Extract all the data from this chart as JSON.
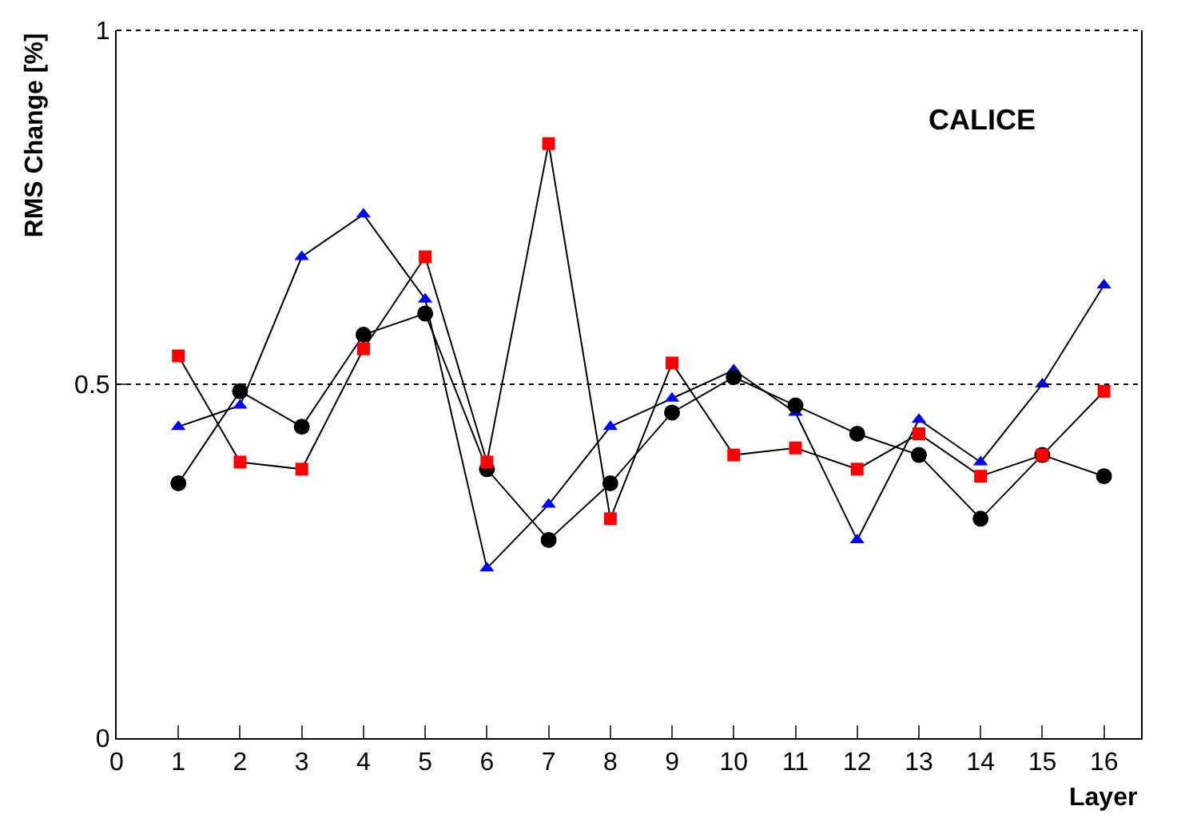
{
  "chart_data": {
    "type": "line",
    "xlabel": "Layer",
    "ylabel": "RMS Change [%]",
    "annotations": [
      "CALICE"
    ],
    "x": [
      1,
      2,
      3,
      4,
      5,
      6,
      7,
      8,
      9,
      10,
      11,
      12,
      13,
      14,
      15,
      16
    ],
    "series": [
      {
        "color": "#ff0000",
        "marker": "square",
        "values": [
          0.54,
          0.39,
          0.38,
          0.55,
          0.68,
          0.39,
          0.84,
          0.31,
          0.53,
          0.4,
          0.41,
          0.38,
          0.43,
          0.37,
          0.4,
          0.49
        ]
      },
      {
        "color": "#000000",
        "marker": "circle",
        "values": [
          0.36,
          0.49,
          0.44,
          0.57,
          0.6,
          0.38,
          0.28,
          0.36,
          0.46,
          0.51,
          0.47,
          0.43,
          0.4,
          0.31,
          0.4,
          0.37
        ]
      },
      {
        "color": "#0000ff",
        "marker": "triangle",
        "values": [
          0.44,
          0.47,
          0.68,
          0.74,
          0.62,
          0.24,
          0.33,
          0.44,
          0.48,
          0.52,
          0.46,
          0.28,
          0.45,
          0.39,
          0.5,
          0.64
        ]
      }
    ],
    "xlim": [
      0,
      16.6
    ],
    "xticks": [
      0,
      1,
      2,
      3,
      4,
      5,
      6,
      7,
      8,
      9,
      10,
      11,
      12,
      13,
      14,
      15,
      16
    ],
    "ylim": [
      0,
      1
    ],
    "yticks": [
      0,
      0.5,
      1
    ],
    "ref_lines": [
      {
        "axis": "y",
        "value": 0.5,
        "line_style": "dotted"
      }
    ],
    "line_style": "solid"
  }
}
